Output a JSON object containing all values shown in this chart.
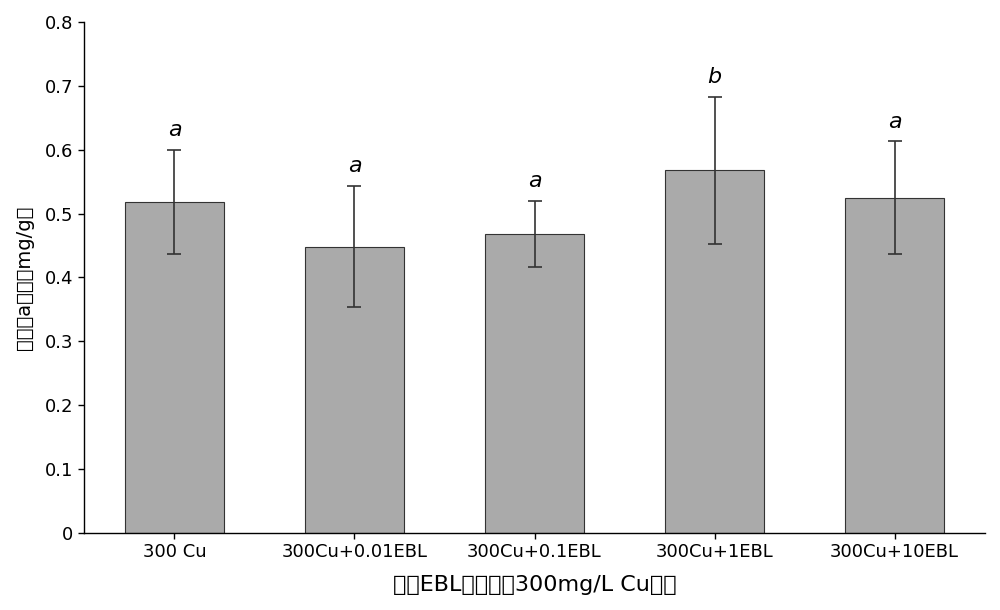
{
  "categories": [
    "300 Cu",
    "300Cu+0.01EBL",
    "300Cu+0.1EBL",
    "300Cu+1EBL",
    "300Cu+10EBL"
  ],
  "values": [
    0.518,
    0.448,
    0.468,
    0.568,
    0.525
  ],
  "errors": [
    0.082,
    0.095,
    0.052,
    0.115,
    0.088
  ],
  "significance": [
    "a",
    "a",
    "a",
    "b",
    "a"
  ],
  "bar_color": "#aaaaaa",
  "bar_edgecolor": "#333333",
  "ylabel": "叶绿素a含量（mg/g）",
  "xlabel": "不同EBL施加下，300mg/L Cu处理",
  "ylim": [
    0,
    0.8
  ],
  "yticks": [
    0,
    0.1,
    0.2,
    0.3,
    0.4,
    0.5,
    0.6,
    0.7,
    0.8
  ],
  "bar_width": 0.55,
  "capsize": 5,
  "sig_fontsize": 16,
  "xlabel_fontsize": 16,
  "ylabel_fontsize": 14,
  "tick_fontsize": 13
}
